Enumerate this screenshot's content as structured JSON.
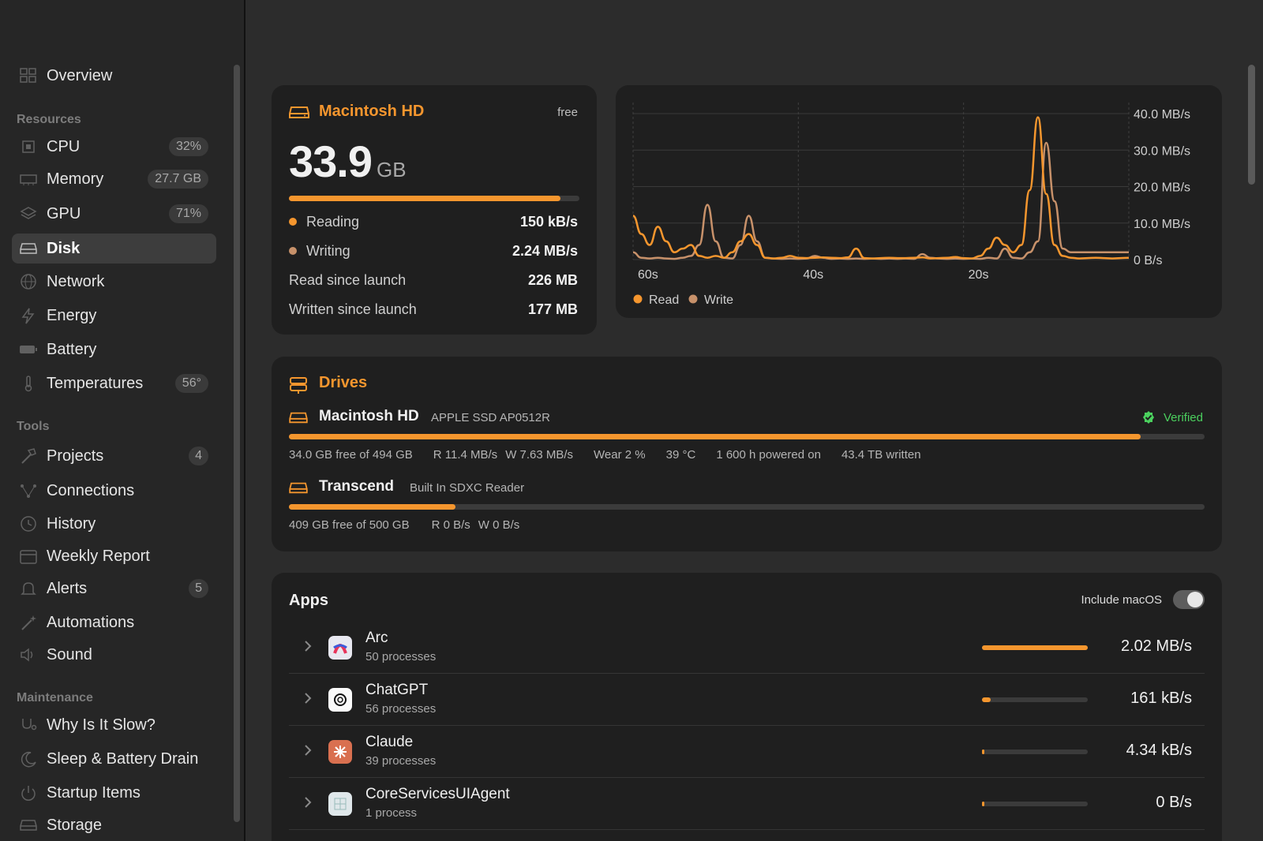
{
  "sidebar": {
    "overview": "Overview",
    "sections": {
      "resources": "Resources",
      "tools": "Tools",
      "maintenance": "Maintenance"
    },
    "resources": [
      {
        "label": "CPU",
        "badge": "32%",
        "icon": "cpu-icon"
      },
      {
        "label": "Memory",
        "badge": "27.7 GB",
        "icon": "memory-icon"
      },
      {
        "label": "GPU",
        "badge": "71%",
        "icon": "gpu-icon"
      },
      {
        "label": "Disk",
        "badge": "",
        "icon": "disk-icon",
        "active": true
      },
      {
        "label": "Network",
        "badge": "",
        "icon": "globe-icon"
      },
      {
        "label": "Energy",
        "badge": "",
        "icon": "bolt-icon"
      },
      {
        "label": "Battery",
        "badge": "",
        "icon": "battery-icon"
      },
      {
        "label": "Temperatures",
        "badge": "56°",
        "icon": "thermometer-icon"
      }
    ],
    "tools": [
      {
        "label": "Projects",
        "badge": "4",
        "icon": "hammer-icon"
      },
      {
        "label": "Connections",
        "badge": "",
        "icon": "connections-icon"
      },
      {
        "label": "History",
        "badge": "",
        "icon": "clock-icon"
      },
      {
        "label": "Weekly Report",
        "badge": "",
        "icon": "calendar-icon"
      },
      {
        "label": "Alerts",
        "badge": "5",
        "icon": "bell-icon"
      },
      {
        "label": "Automations",
        "badge": "",
        "icon": "wand-icon"
      },
      {
        "label": "Sound",
        "badge": "",
        "icon": "speaker-icon"
      }
    ],
    "maintenance": [
      {
        "label": "Why Is It Slow?",
        "badge": "",
        "icon": "stethoscope-icon"
      },
      {
        "label": "Sleep & Battery Drain",
        "badge": "",
        "icon": "moon-icon"
      },
      {
        "label": "Startup Items",
        "badge": "",
        "icon": "power-icon"
      },
      {
        "label": "Storage",
        "badge": "",
        "icon": "storage-icon"
      }
    ]
  },
  "disk_card": {
    "title": "Macintosh HD",
    "free_label": "free",
    "free_value": "33.9",
    "free_unit": "GB",
    "used_fraction": 0.935,
    "reading_label": "Reading",
    "reading_value": "150 kB/s",
    "writing_label": "Writing",
    "writing_value": "2.24 MB/s",
    "read_since_label": "Read since launch",
    "read_since_value": "226 MB",
    "written_since_label": "Written since launch",
    "written_since_value": "177 MB"
  },
  "chart_data": {
    "type": "line",
    "x": [
      60,
      59,
      58,
      57,
      56,
      55,
      54,
      53,
      52,
      51,
      50,
      49,
      48,
      47,
      46,
      45,
      44,
      43,
      42,
      41,
      40,
      39,
      38,
      37,
      36,
      35,
      34,
      33,
      32,
      31,
      30,
      29,
      28,
      27,
      26,
      25,
      24,
      23,
      22,
      21,
      20,
      19,
      18,
      17,
      16,
      15,
      14,
      13,
      12,
      11,
      10,
      9,
      8,
      7,
      6,
      5,
      4,
      3,
      2,
      1,
      0
    ],
    "series": [
      {
        "name": "Read",
        "color": "#f5962e",
        "values": [
          12,
          7,
          4,
          9,
          5,
          2,
          3,
          4,
          1,
          0.5,
          1,
          0.5,
          2,
          5,
          7,
          4,
          0.5,
          0.3,
          0.5,
          1,
          0.5,
          0.4,
          0.5,
          0.6,
          0.5,
          0.4,
          0.6,
          3,
          0.4,
          0.3,
          0.4,
          0.5,
          0.4,
          0.4,
          0.5,
          0.6,
          0.3,
          0.4,
          0.5,
          0.7,
          0.4,
          0.3,
          1,
          3,
          6,
          4,
          2,
          4,
          19,
          39,
          18,
          4,
          1,
          0.5,
          0.3,
          0.4,
          0.5,
          0.4,
          0.3,
          0.4,
          0.5
        ]
      },
      {
        "name": "Write",
        "color": "#c7916a",
        "values": [
          2,
          0.5,
          0.3,
          0.5,
          0.3,
          0.2,
          0.5,
          1,
          4,
          15,
          5,
          0.5,
          0.3,
          4,
          12,
          5,
          0.5,
          0.3,
          0.2,
          0.3,
          0.2,
          0.3,
          1,
          0.5,
          0.2,
          0.3,
          0.2,
          0.3,
          0.2,
          0.3,
          0.2,
          0.3,
          0.2,
          0.3,
          0.2,
          1.5,
          0.5,
          0.3,
          0.2,
          0.3,
          0.2,
          0.3,
          0.2,
          0.5,
          0.3,
          3,
          0.5,
          0.3,
          2,
          5,
          32,
          16,
          3,
          2,
          2,
          2,
          2,
          2,
          2,
          2,
          2
        ]
      }
    ],
    "xlim": [
      60,
      0
    ],
    "ylim": [
      0,
      40
    ],
    "x_ticks": [
      "60s",
      "40s",
      "20s"
    ],
    "y_ticks": [
      "40.0 MB/s",
      "30.0 MB/s",
      "20.0 MB/s",
      "10.0 MB/s",
      "0 B/s"
    ],
    "legend": [
      "Read",
      "Write"
    ],
    "legend_position": "bottom-left",
    "grid": true
  },
  "drives": {
    "title": "Drives",
    "verified": "Verified",
    "items": [
      {
        "name": "Macintosh HD",
        "model": "APPLE SSD AP0512R",
        "used_fraction": 0.93,
        "free": "34.0 GB free of 494 GB",
        "read": "R 11.4 MB/s",
        "write": "W 7.63 MB/s",
        "wear": "Wear 2 %",
        "temp": "39 °C",
        "hours": "1 600 h powered on",
        "written": "43.4 TB written"
      },
      {
        "name": "Transcend",
        "model": "Built In SDXC Reader",
        "used_fraction": 0.182,
        "free": "409 GB free of 500 GB",
        "read": "R 0 B/s",
        "write": "W 0 B/s"
      }
    ]
  },
  "apps": {
    "title": "Apps",
    "toggle_label": "Include macOS",
    "rows": [
      {
        "name": "Arc",
        "processes": "50 processes",
        "value": "2.02 MB/s",
        "fraction": 1.0,
        "icon": "arc-icon"
      },
      {
        "name": "ChatGPT",
        "processes": "56 processes",
        "value": "161 kB/s",
        "fraction": 0.08,
        "icon": "chatgpt-icon"
      },
      {
        "name": "Claude",
        "processes": "39 processes",
        "value": "4.34 kB/s",
        "fraction": 0.01,
        "icon": "claude-icon"
      },
      {
        "name": "CoreServicesUIAgent",
        "processes": "1 process",
        "value": "0 B/s",
        "fraction": 0.01,
        "icon": "coreservices-icon"
      }
    ]
  }
}
